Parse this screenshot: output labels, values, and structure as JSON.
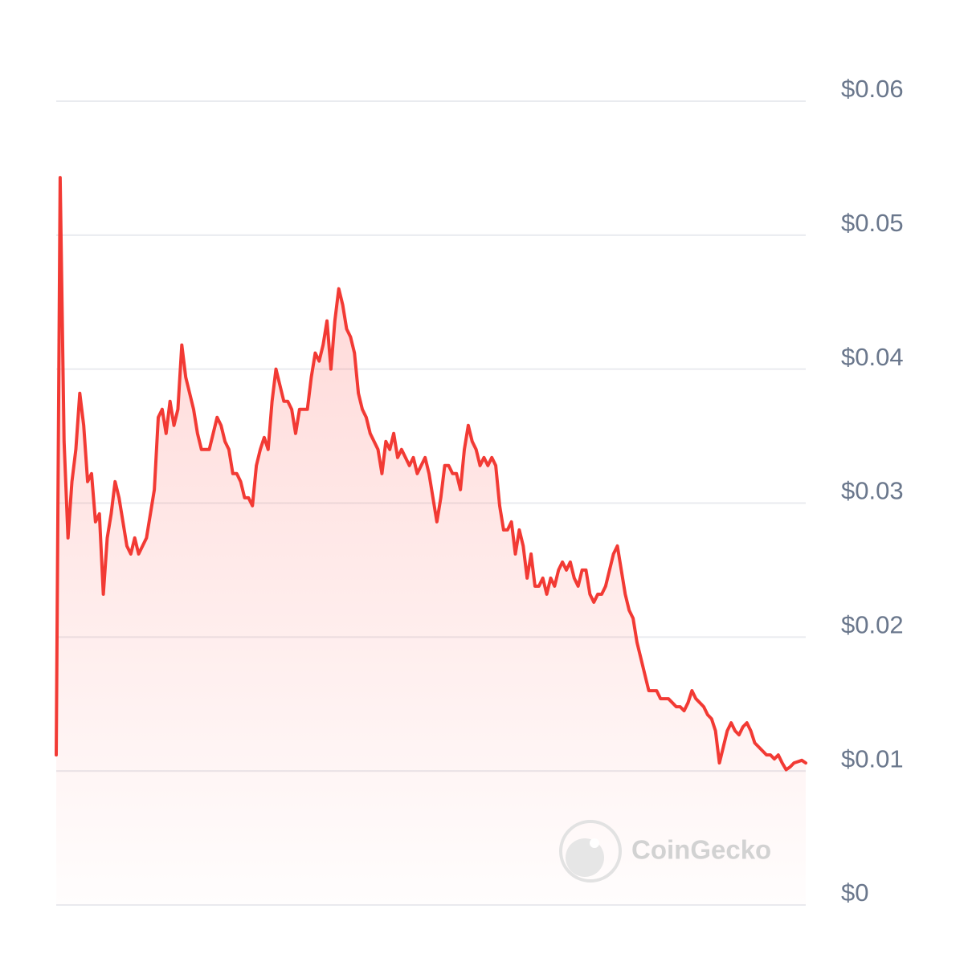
{
  "chart_data": {
    "type": "area",
    "color": "#f23a34",
    "grid": true,
    "watermark": "CoinGecko",
    "ylim": [
      0,
      0.06
    ],
    "yticks": [
      {
        "value": 0,
        "label": "$0"
      },
      {
        "value": 0.01,
        "label": "$0.01"
      },
      {
        "value": 0.02,
        "label": "$0.02"
      },
      {
        "value": 0.03,
        "label": "$0.03"
      },
      {
        "value": 0.04,
        "label": "$0.04"
      },
      {
        "value": 0.05,
        "label": "$0.05"
      },
      {
        "value": 0.06,
        "label": "$0.06"
      }
    ],
    "values": [
      0.0112,
      0.0543,
      0.0346,
      0.0274,
      0.0316,
      0.034,
      0.0382,
      0.0358,
      0.0316,
      0.0322,
      0.0286,
      0.0292,
      0.0232,
      0.0274,
      0.0292,
      0.0316,
      0.0304,
      0.0286,
      0.0268,
      0.0262,
      0.0274,
      0.0262,
      0.0268,
      0.0274,
      0.0292,
      0.031,
      0.0364,
      0.037,
      0.0352,
      0.0376,
      0.0358,
      0.037,
      0.0418,
      0.0394,
      0.0382,
      0.037,
      0.0352,
      0.034,
      0.034,
      0.034,
      0.0352,
      0.0364,
      0.0358,
      0.0346,
      0.034,
      0.0322,
      0.0322,
      0.0316,
      0.0304,
      0.0304,
      0.0298,
      0.0328,
      0.034,
      0.0349,
      0.034,
      0.0376,
      0.04,
      0.0388,
      0.0376,
      0.0376,
      0.037,
      0.0352,
      0.037,
      0.037,
      0.037,
      0.0394,
      0.0412,
      0.0406,
      0.0418,
      0.0436,
      0.04,
      0.0436,
      0.046,
      0.0448,
      0.043,
      0.0424,
      0.0412,
      0.0382,
      0.037,
      0.0364,
      0.0352,
      0.0346,
      0.034,
      0.0322,
      0.0346,
      0.034,
      0.0352,
      0.0334,
      0.034,
      0.0334,
      0.0328,
      0.0334,
      0.0322,
      0.0328,
      0.0334,
      0.0322,
      0.0304,
      0.0286,
      0.0304,
      0.0328,
      0.0328,
      0.0322,
      0.0322,
      0.031,
      0.034,
      0.0358,
      0.0346,
      0.034,
      0.0328,
      0.0334,
      0.0328,
      0.0334,
      0.0328,
      0.0298,
      0.028,
      0.028,
      0.0286,
      0.0262,
      0.028,
      0.0268,
      0.0244,
      0.0262,
      0.0238,
      0.0238,
      0.0244,
      0.0232,
      0.0244,
      0.0238,
      0.025,
      0.0256,
      0.025,
      0.0256,
      0.0244,
      0.0238,
      0.025,
      0.025,
      0.0232,
      0.0226,
      0.0232,
      0.0232,
      0.0238,
      0.025,
      0.0262,
      0.0268,
      0.025,
      0.0232,
      0.022,
      0.0214,
      0.0196,
      0.0184,
      0.0172,
      0.016,
      0.016,
      0.016,
      0.0154,
      0.0154,
      0.0154,
      0.0151,
      0.0148,
      0.0148,
      0.0145,
      0.0151,
      0.016,
      0.0154,
      0.0151,
      0.0148,
      0.0142,
      0.0139,
      0.013,
      0.0106,
      0.0118,
      0.013,
      0.0136,
      0.013,
      0.0127,
      0.0133,
      0.0136,
      0.013,
      0.0121,
      0.0118,
      0.0115,
      0.0112,
      0.0112,
      0.0109,
      0.0112,
      0.0106,
      0.0101,
      0.0103,
      0.0106,
      0.0107,
      0.0108,
      0.0106
    ]
  }
}
